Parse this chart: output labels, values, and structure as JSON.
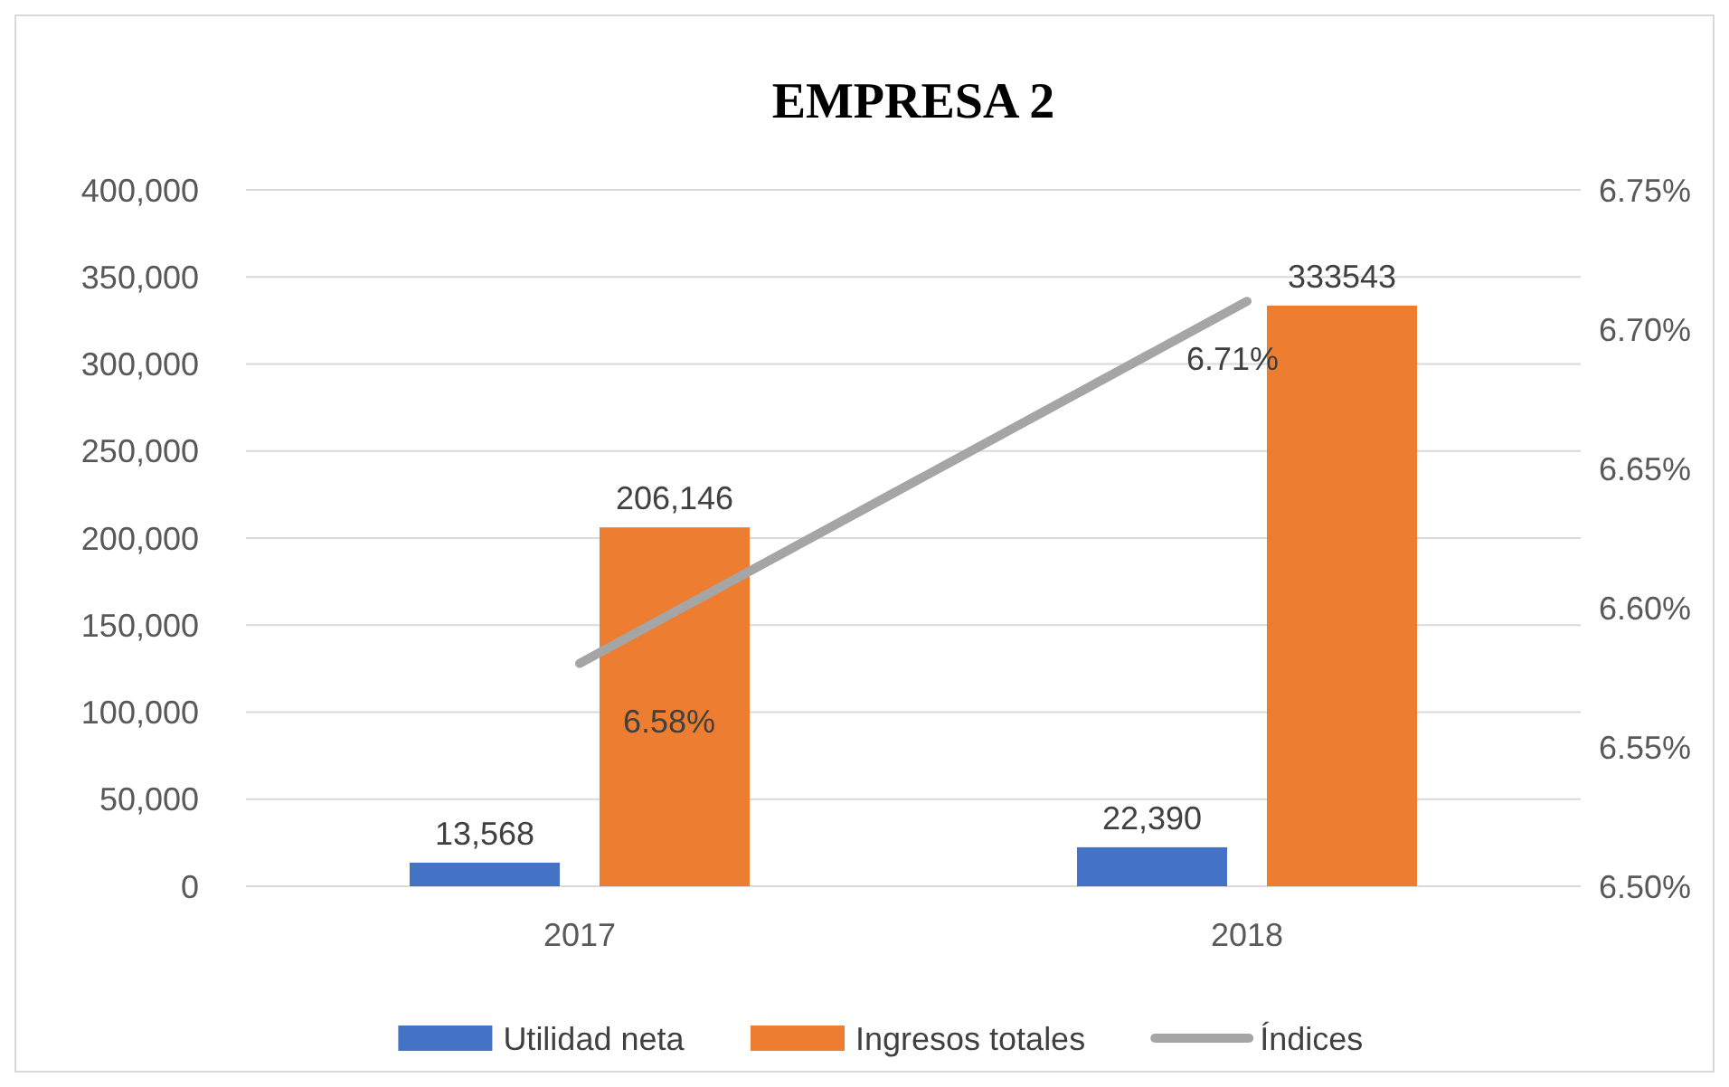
{
  "chart_data": {
    "type": "bar",
    "title": "EMPRESA 2",
    "categories": [
      "2017",
      "2018"
    ],
    "series": [
      {
        "name": "Utilidad neta",
        "color": "#4472c4",
        "values": [
          13568,
          22390
        ],
        "value_labels": [
          "13,568",
          "22,390"
        ]
      },
      {
        "name": "Ingresos totales",
        "color": "#ed7d31",
        "values": [
          206146,
          333543
        ],
        "value_labels": [
          "206,146",
          "333543"
        ]
      },
      {
        "name": "Índices",
        "type": "line",
        "axis": "y2",
        "color": "#a5a5a5",
        "values": [
          6.58,
          6.71
        ],
        "value_labels": [
          "6.58%",
          "6.71%"
        ]
      }
    ],
    "ylim": [
      0,
      400000
    ],
    "yticks": [
      {
        "value": 0,
        "label": "0"
      },
      {
        "value": 50000,
        "label": "50,000"
      },
      {
        "value": 100000,
        "label": "100,000"
      },
      {
        "value": 150000,
        "label": "150,000"
      },
      {
        "value": 200000,
        "label": "200,000"
      },
      {
        "value": 250000,
        "label": "250,000"
      },
      {
        "value": 300000,
        "label": "300,000"
      },
      {
        "value": 350000,
        "label": "350,000"
      },
      {
        "value": 400000,
        "label": "400,000"
      }
    ],
    "y2lim": [
      6.5,
      6.75
    ],
    "y2ticks": [
      {
        "value": 6.5,
        "label": "6.50%"
      },
      {
        "value": 6.55,
        "label": "6.55%"
      },
      {
        "value": 6.6,
        "label": "6.60%"
      },
      {
        "value": 6.65,
        "label": "6.65%"
      },
      {
        "value": 6.7,
        "label": "6.70%"
      },
      {
        "value": 6.75,
        "label": "6.75%"
      }
    ],
    "grid": "y",
    "legend": "bottom",
    "marker": "none",
    "line_style": "solid"
  }
}
